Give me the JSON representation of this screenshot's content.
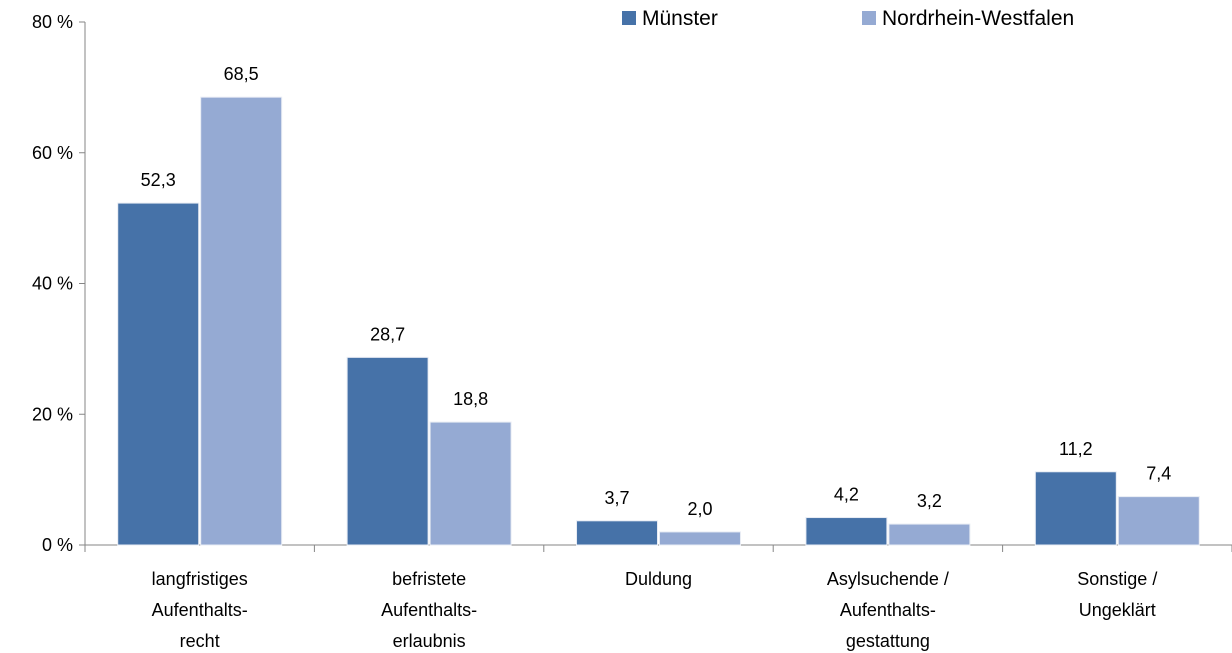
{
  "chart_data": {
    "type": "bar",
    "categories": [
      [
        "langfristiges",
        "Aufenthalts-",
        "recht"
      ],
      [
        "befristete",
        "Aufenthalts-",
        "erlaubnis"
      ],
      [
        "Duldung"
      ],
      [
        "Asylsuchende /",
        "Aufenthalts-",
        "gestattung"
      ],
      [
        "Sonstige /",
        "Ungeklärt"
      ]
    ],
    "series": [
      {
        "name": "Münster",
        "color": "#4672a8",
        "values": [
          52.3,
          28.7,
          3.7,
          4.2,
          11.2
        ],
        "value_labels": [
          "52,3",
          "28,7",
          "3,7",
          "4,2",
          "11,2"
        ]
      },
      {
        "name": "Nordrhein-Westfalen",
        "color": "#95aad3",
        "values": [
          68.5,
          18.8,
          2.0,
          3.2,
          7.4
        ],
        "value_labels": [
          "68,5",
          "18,8",
          "2,0",
          "3,2",
          "7,4"
        ]
      }
    ],
    "ylim": [
      0,
      80
    ],
    "yticks": [
      {
        "value": 0,
        "label": "0 %"
      },
      {
        "value": 20,
        "label": "20 %"
      },
      {
        "value": 40,
        "label": "40 %"
      },
      {
        "value": 60,
        "label": "60 %"
      },
      {
        "value": 80,
        "label": "80 %"
      }
    ],
    "legend": "top"
  }
}
